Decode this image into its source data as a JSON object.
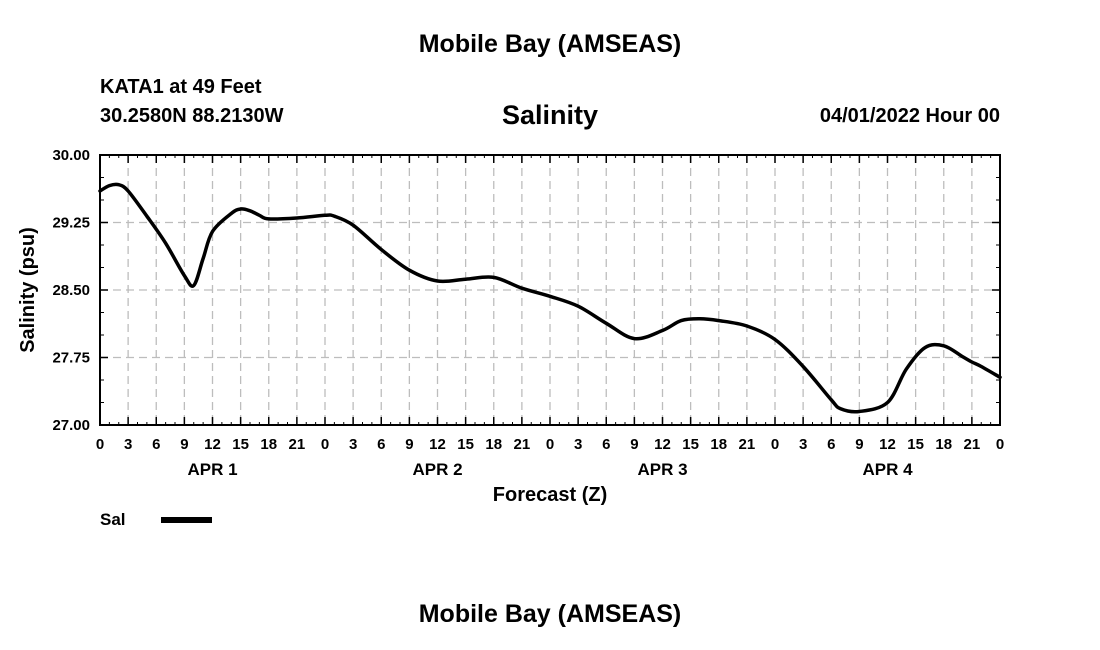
{
  "header": {
    "title": "Mobile Bay (AMSEAS)",
    "station": "KATA1 at 49 Feet",
    "latlon": "30.2580N  88.2130W",
    "parameter": "Salinity",
    "datetime": "04/01/2022 Hour 00"
  },
  "footer": {
    "title": "Mobile Bay (AMSEAS)"
  },
  "legend": {
    "label": "Sal",
    "color": "#000000"
  },
  "chart_data": {
    "type": "line",
    "title": "Salinity",
    "xlabel": "Forecast (Z)",
    "ylabel": "Salinity (psu)",
    "xlim": [
      0,
      96
    ],
    "ylim": [
      27.0,
      30.0
    ],
    "y_ticks": [
      "27.00",
      "27.75",
      "28.50",
      "29.25",
      "30.00"
    ],
    "x_tick_labels": [
      "0",
      "3",
      "6",
      "9",
      "12",
      "15",
      "18",
      "21",
      "0",
      "3",
      "6",
      "9",
      "12",
      "15",
      "18",
      "21",
      "0",
      "3",
      "6",
      "9",
      "12",
      "15",
      "18",
      "21",
      "0",
      "3",
      "6",
      "9",
      "12",
      "15",
      "18",
      "21",
      "0"
    ],
    "day_labels": [
      "APR 1",
      "APR 2",
      "APR 3",
      "APR 4"
    ],
    "grid": true,
    "series": [
      {
        "name": "Sal",
        "x": [
          0,
          1,
          2,
          3,
          5,
          7,
          9,
          10,
          11,
          12,
          14,
          15,
          16,
          17,
          18,
          21,
          24,
          25,
          27,
          30,
          33,
          36,
          39,
          42,
          45,
          48,
          51,
          54,
          57,
          60,
          62,
          64,
          66,
          69,
          72,
          75,
          78,
          79,
          81,
          84,
          86,
          88,
          90,
          92,
          93,
          94,
          96
        ],
        "values": [
          29.6,
          29.66,
          29.67,
          29.6,
          29.32,
          29.02,
          28.66,
          28.55,
          28.85,
          29.15,
          29.35,
          29.4,
          29.38,
          29.33,
          29.29,
          29.3,
          29.33,
          29.32,
          29.22,
          28.95,
          28.72,
          28.6,
          28.62,
          28.64,
          28.52,
          28.43,
          28.32,
          28.13,
          27.96,
          28.05,
          28.16,
          28.18,
          28.16,
          28.1,
          27.95,
          27.65,
          27.28,
          27.18,
          27.15,
          27.25,
          27.62,
          27.86,
          27.88,
          27.76,
          27.7,
          27.65,
          27.53
        ]
      }
    ]
  }
}
